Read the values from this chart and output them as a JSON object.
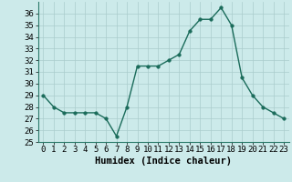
{
  "x": [
    0,
    1,
    2,
    3,
    4,
    5,
    6,
    7,
    8,
    9,
    10,
    11,
    12,
    13,
    14,
    15,
    16,
    17,
    18,
    19,
    20,
    21,
    22,
    23
  ],
  "y": [
    29,
    28,
    27.5,
    27.5,
    27.5,
    27.5,
    27,
    25.5,
    28,
    31.5,
    31.5,
    31.5,
    32,
    32.5,
    34.5,
    35.5,
    35.5,
    36.5,
    35,
    30.5,
    29,
    28,
    27.5,
    27
  ],
  "line_color": "#1a6b5a",
  "marker_color": "#1a6b5a",
  "bg_color": "#cceaea",
  "grid_color": "#aacccc",
  "xlabel": "Humidex (Indice chaleur)",
  "ylim": [
    25,
    37
  ],
  "xlim": [
    -0.5,
    23.5
  ],
  "yticks": [
    25,
    26,
    27,
    28,
    29,
    30,
    31,
    32,
    33,
    34,
    35,
    36
  ],
  "xticks": [
    0,
    1,
    2,
    3,
    4,
    5,
    6,
    7,
    8,
    9,
    10,
    11,
    12,
    13,
    14,
    15,
    16,
    17,
    18,
    19,
    20,
    21,
    22,
    23
  ],
  "xlabel_fontsize": 7.5,
  "tick_fontsize": 6.5,
  "line_width": 1.0,
  "marker_size": 2.5
}
